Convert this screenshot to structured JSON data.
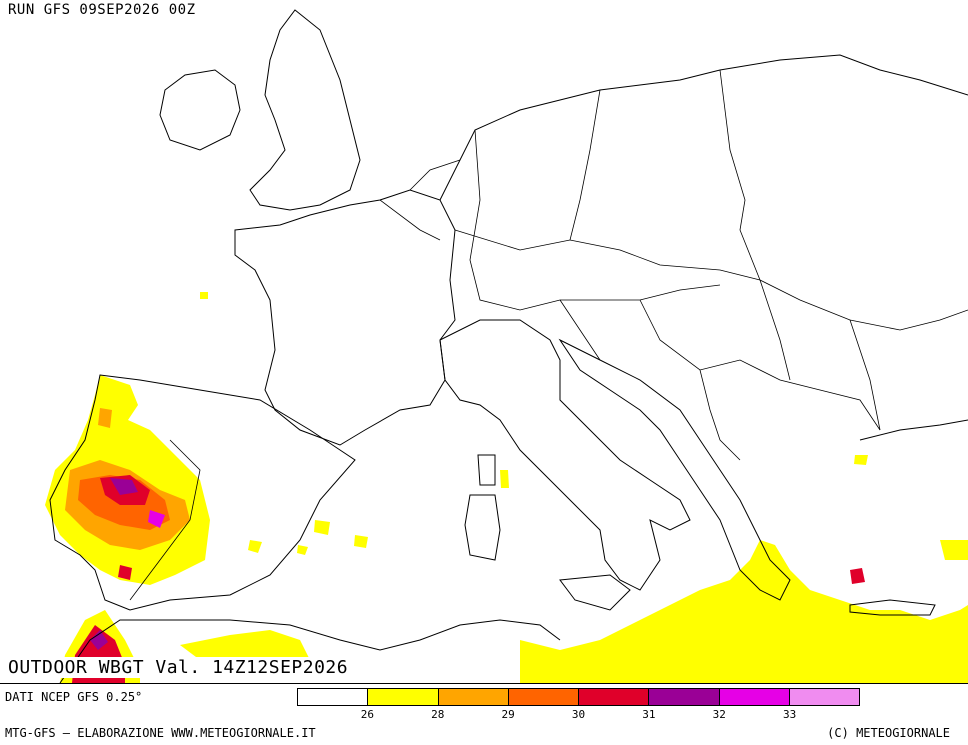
{
  "run_label": "RUN GFS 09SEP2026 00Z",
  "valid_label": "OUTDOOR WBGT Val. 14Z12SEP2026",
  "data_source": "DATI NCEP GFS 0.25°",
  "footer_left": "MTG-GFS — ELABORAZIONE WWW.METEOGIORNALE.IT",
  "footer_right": "(C) METEOGIORNALE",
  "legend": {
    "colors": [
      "#ffffff",
      "#ffff00",
      "#ffa500",
      "#ff6400",
      "#e0002a",
      "#9a0096",
      "#e600e6",
      "#f08cf0"
    ],
    "ticks": [
      "26",
      "28",
      "29",
      "30",
      "31",
      "32",
      "33"
    ]
  },
  "palette": {
    "land_border": "#000000",
    "background": "#ffffff"
  }
}
